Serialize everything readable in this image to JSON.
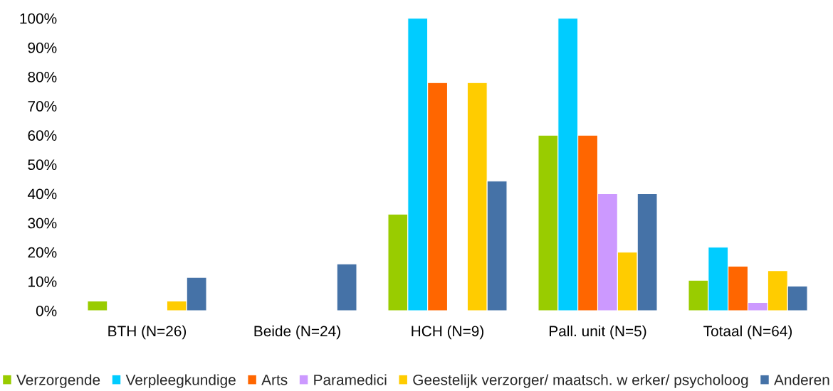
{
  "chart_data": {
    "type": "bar",
    "categories": [
      "BTH (N=26)",
      "Beide (N=24)",
      "HCH (N=9)",
      "Pall. unit (N=5)",
      "Totaal (N=64)"
    ],
    "series": [
      {
        "name": "Verzorgende",
        "color": "#99cc00",
        "values": [
          3.3,
          0,
          33,
          60,
          10.4
        ]
      },
      {
        "name": "Verpleegkundige",
        "color": "#00ccff",
        "values": [
          0,
          0,
          100,
          100,
          21.7
        ]
      },
      {
        "name": "Arts",
        "color": "#ff6600",
        "values": [
          0,
          0,
          78,
          60,
          15.2
        ]
      },
      {
        "name": "Paramedici",
        "color": "#cc99ff",
        "values": [
          0,
          0,
          0,
          40,
          2.8
        ]
      },
      {
        "name": "Geestelijk verzorger/ maatsch. w erker/ psycholoog",
        "color": "#ffcc00",
        "values": [
          3.3,
          0,
          78,
          20,
          13.7
        ]
      },
      {
        "name": "Anderen",
        "color": "#4572a7",
        "values": [
          11.4,
          16,
          44.3,
          40,
          8.4
        ]
      }
    ],
    "ylim": [
      0,
      100
    ],
    "yticks": [
      {
        "value": 0,
        "label": "0%"
      },
      {
        "value": 10,
        "label": "10%"
      },
      {
        "value": 20,
        "label": "20%"
      },
      {
        "value": 30,
        "label": "30%"
      },
      {
        "value": 40,
        "label": "40%"
      },
      {
        "value": 50,
        "label": "50%"
      },
      {
        "value": 60,
        "label": "60%"
      },
      {
        "value": 70,
        "label": "70%"
      },
      {
        "value": 80,
        "label": "80%"
      },
      {
        "value": 90,
        "label": "90%"
      },
      {
        "value": 100,
        "label": "100%"
      }
    ],
    "grid": false,
    "legend": "bottom"
  }
}
